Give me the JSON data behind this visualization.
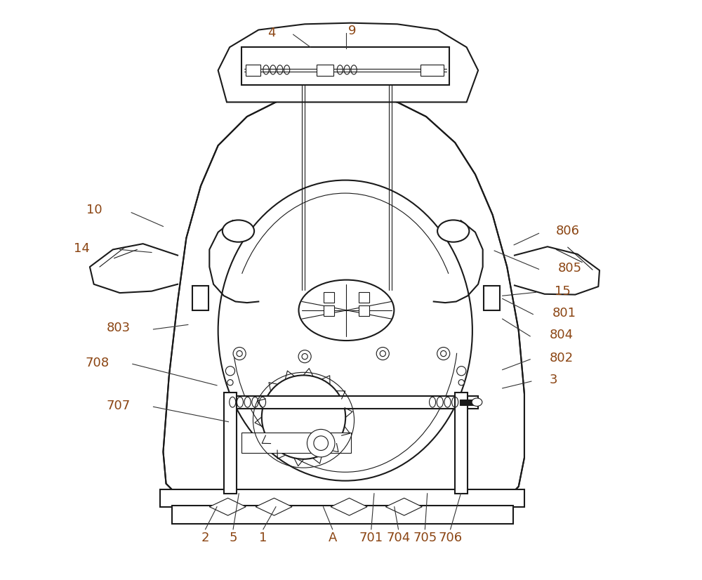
{
  "bg_color": "#ffffff",
  "line_color": "#1a1a1a",
  "label_color": "#8B4513",
  "figsize": [
    10.0,
    8.26
  ],
  "dpi": 100
}
